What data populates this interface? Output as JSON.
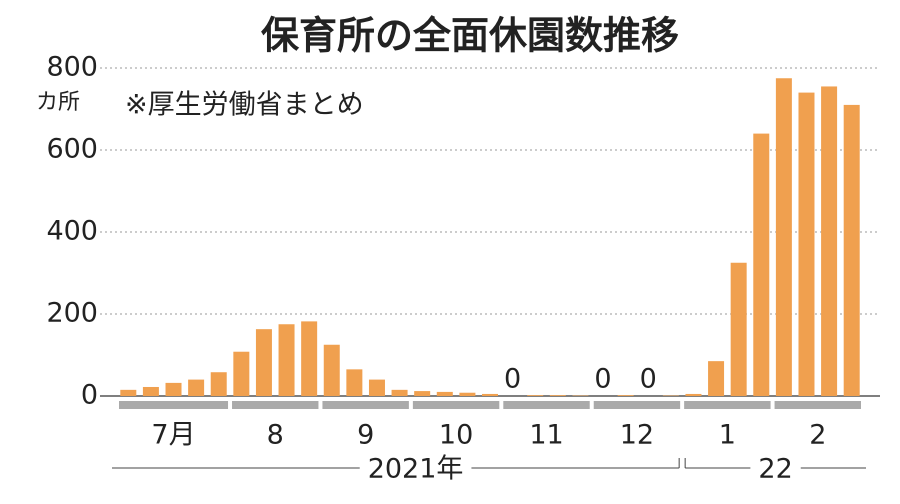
{
  "chart_data": {
    "type": "bar",
    "title": "保育所の全面休園数推移",
    "y_unit": "カ所",
    "note": "※厚生労働省まとめ",
    "categories": [
      null,
      null,
      null,
      null,
      null,
      null,
      null,
      null,
      null,
      null,
      null,
      null,
      null,
      null,
      null,
      null,
      null,
      null,
      null,
      null,
      null,
      null,
      null,
      null,
      null,
      null,
      null,
      null,
      null,
      null,
      null,
      null,
      null
    ],
    "values": [
      15,
      22,
      32,
      40,
      58,
      108,
      163,
      175,
      182,
      125,
      65,
      40,
      15,
      12,
      10,
      8,
      5,
      0,
      2,
      2,
      1,
      0,
      2,
      0,
      1,
      5,
      85,
      325,
      640,
      775,
      740,
      755,
      710
    ],
    "value_labels": [
      null,
      null,
      null,
      null,
      null,
      null,
      null,
      null,
      null,
      null,
      null,
      null,
      null,
      null,
      null,
      null,
      null,
      "0",
      null,
      null,
      null,
      "0",
      null,
      "0",
      null,
      null,
      null,
      null,
      null,
      null,
      null,
      null,
      null
    ],
    "color": "#f0a04f",
    "month_groups": [
      {
        "label": "7月",
        "bars": 5
      },
      {
        "label": "8",
        "bars": 4
      },
      {
        "label": "9",
        "bars": 4
      },
      {
        "label": "10",
        "bars": 4
      },
      {
        "label": "11",
        "bars": 4
      },
      {
        "label": "12",
        "bars": 4
      },
      {
        "label": "1",
        "bars": 4
      },
      {
        "label": "2",
        "bars": 4
      }
    ],
    "year_groups": [
      {
        "label": "2021年",
        "months": 6
      },
      {
        "label": "22",
        "months": 2
      }
    ],
    "ylim": [
      0,
      800
    ],
    "yticks": [
      0,
      200,
      400,
      600,
      800
    ],
    "grid": true
  }
}
